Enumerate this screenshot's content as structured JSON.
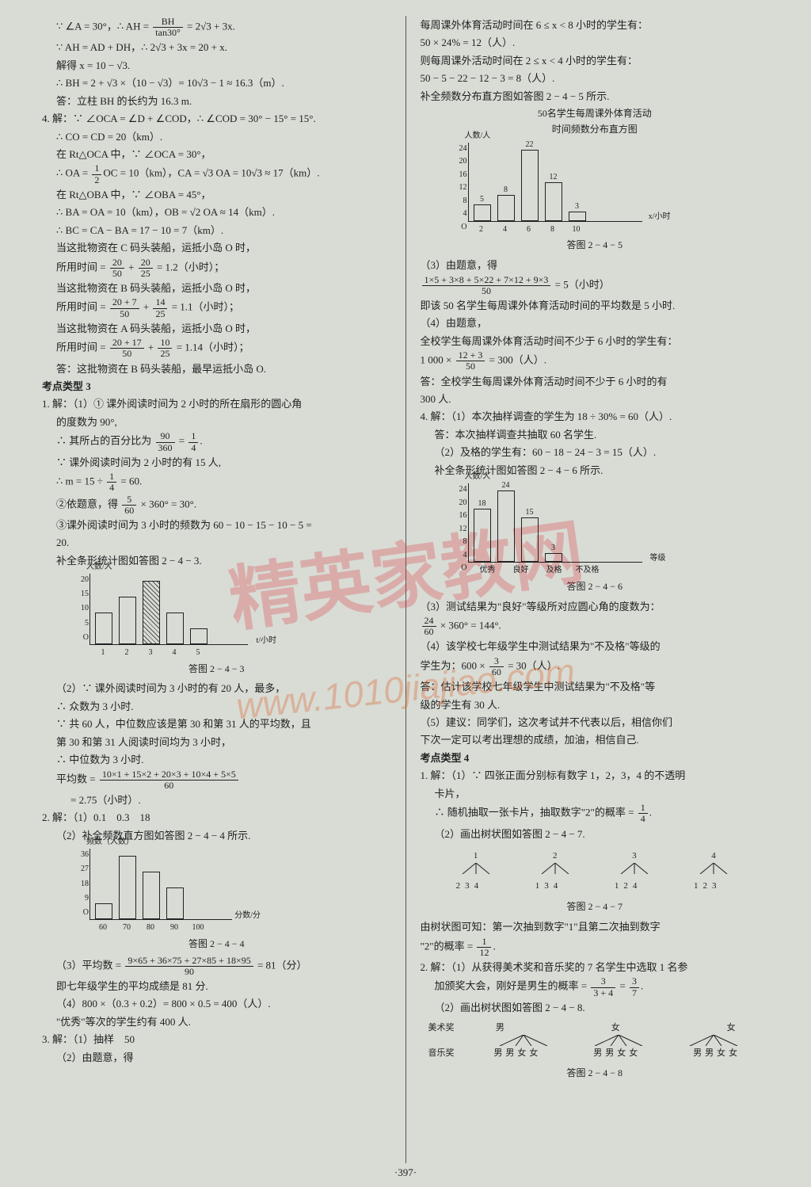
{
  "page_number": "·397·",
  "watermark_main": "精英家教网",
  "watermark_url": "www.1010jiajiao.com",
  "left": {
    "l1": "∵ ∠A = 30°，∴ AH = ",
    "l1b": " = 2√3 + 3x.",
    "frac1_num": "BH",
    "frac1_den": "tan30°",
    "l2": "∵ AH = AD + DH，∴ 2√3 + 3x = 20 + x.",
    "l3": "解得 x = 10 − √3.",
    "l4": "∴ BH = 2 + √3 ×（10 − √3）= 10√3 − 1 ≈ 16.3（m）.",
    "l5": "答：立柱 BH 的长约为 16.3 m.",
    "l6": "4. 解：∵ ∠OCA = ∠D + ∠COD，∴ ∠COD = 30° − 15° = 15°.",
    "l7": "∴ CO = CD = 20（km）.",
    "l8": "在 Rt△OCA 中，∵ ∠OCA = 30°，",
    "l9a": "∴ OA = ",
    "frac2_num": "1",
    "frac2_den": "2",
    "l9b": "OC = 10（km），CA = √3 OA = 10√3 ≈ 17（km）.",
    "l10": "在 Rt△OBA 中，∵ ∠OBA = 45°，",
    "l11": "∴ BA = OA = 10（km），OB = √2 OA ≈ 14（km）.",
    "l12": "∴ BC = CA − BA = 17 − 10 = 7（km）.",
    "l13": "当这批物资在 C 码头装船，运抵小岛 O 时，",
    "l14a": "所用时间 = ",
    "frac3a_num": "20",
    "frac3a_den": "50",
    "l14m": " + ",
    "frac3b_num": "20",
    "frac3b_den": "25",
    "l14b": " = 1.2（小时）；",
    "l15": "当这批物资在 B 码头装船，运抵小岛 O 时，",
    "l16a": "所用时间 = ",
    "frac4a_num": "20 + 7",
    "frac4a_den": "50",
    "l16m": " + ",
    "frac4b_num": "14",
    "frac4b_den": "25",
    "l16b": " = 1.1（小时）；",
    "l17": "当这批物资在 A 码头装船，运抵小岛 O 时，",
    "l18a": "所用时间 = ",
    "frac5a_num": "20 + 17",
    "frac5a_den": "50",
    "l18m": " + ",
    "frac5b_num": "10",
    "frac5b_den": "25",
    "l18b": " = 1.14（小时）；",
    "l19": "答：这批物资在 B 码头装船，最早运抵小岛 O.",
    "sec3": "考点类型 3",
    "l20": "1. 解：（1）① 课外阅读时间为 2 小时的所在扇形的圆心角",
    "l20b": "的度数为 90°,",
    "l21a": "∴ 其所占的百分比为 ",
    "frac6_num": "90",
    "frac6_den": "360",
    "l21m": " = ",
    "frac6b_num": "1",
    "frac6b_den": "4",
    "l21b": ".",
    "l22": "∵ 课外阅读时间为 2 小时的有 15 人,",
    "l23a": "∴ m = 15 ÷ ",
    "frac7_num": "1",
    "frac7_den": "4",
    "l23b": " = 60.",
    "l24a": "②依题意，得 ",
    "frac8_num": "5",
    "frac8_den": "60",
    "l24b": " × 360° = 30°.",
    "l25": "③课外阅读时间为 3 小时的频数为 60 − 10 − 15 − 10 − 5 =",
    "l25b": "20.",
    "l26": "补全条形统计图如答图 2 − 4 − 3.",
    "chart1_caption": "答图 2 − 4 − 3",
    "chart1_ylabel": "人数/人",
    "chart1_xlabel": "t/小时",
    "chart1": {
      "categories": [
        "1",
        "2",
        "3",
        "4",
        "5"
      ],
      "values": [
        10,
        15,
        20,
        10,
        5
      ],
      "ymax": 20,
      "yticks": [
        "20",
        "15",
        "10",
        "5",
        "O"
      ],
      "bar_color": "transparent",
      "hatched": [
        false,
        false,
        true,
        false,
        false
      ]
    },
    "l27": "（2）∵ 课外阅读时间为 3 小时的有 20 人，最多，",
    "l28": "∴ 众数为 3 小时.",
    "l29": "∵ 共 60 人，中位数应该是第 30 和第 31 人的平均数，且",
    "l30": "第 30 和第 31 人阅读时间均为 3 小时，",
    "l31": "∴ 中位数为 3 小时.",
    "l32a": "平均数 = ",
    "frac9_num": "10×1 + 15×2 + 20×3 + 10×4 + 5×5",
    "frac9_den": "60",
    "l33": "= 2.75（小时）.",
    "l34": "2. 解：（1）0.1　0.3　18",
    "l35": "（2）补全频数直方图如答图 2 − 4 − 4 所示.",
    "chart2_caption": "答图 2 − 4 − 4",
    "chart2_ylabel": "频数（人数）",
    "chart2_xlabel": "分数/分",
    "chart2": {
      "categories": [
        "60",
        "70",
        "80",
        "90",
        "100"
      ],
      "values": [
        9,
        36,
        27,
        18
      ],
      "yticks": [
        "36",
        "27",
        "18",
        "9",
        "O"
      ]
    },
    "l36a": "（3）平均数 = ",
    "frac10_num": "9×65 + 36×75 + 27×85 + 18×95",
    "frac10_den": "90",
    "l36b": " = 81（分）",
    "l37": "即七年级学生的平均成绩是 81 分.",
    "l38": "（4）800 ×（0.3 + 0.2）= 800 × 0.5 = 400（人）.",
    "l39": "\"优秀\"等次的学生约有 400 人.",
    "l40": "3. 解：（1）抽样　50",
    "l41": "（2）由题意，得"
  },
  "right": {
    "r1": "每周课外体育活动时间在 6 ≤ x < 8 小时的学生有：",
    "r2": "50 × 24% = 12（人）.",
    "r3": "则每周课外活动时间在 2 ≤ x < 4 小时的学生有：",
    "r4": "50 − 5 − 22 − 12 − 3 = 8（人）.",
    "r5": "补全频数分布直方图如答图 2 − 4 − 5 所示.",
    "r5b": "50名学生每周课外体育活动",
    "r5c": "时间频数分布直方图",
    "chart3_caption": "答图 2 − 4 − 5",
    "chart3_ylabel": "人数/人",
    "chart3_xlabel": "x/小时",
    "chart3": {
      "categories": [
        "2",
        "4",
        "6",
        "8",
        "10"
      ],
      "values": [
        5,
        8,
        22,
        12,
        3
      ],
      "labels_top": [
        "5",
        "8",
        "22",
        "12",
        "3"
      ],
      "yticks": [
        "24",
        "20",
        "16",
        "12",
        "8",
        "4",
        "O"
      ]
    },
    "r6": "（3）由题意，得",
    "r7_num": "1×5 + 3×8 + 5×22 + 7×12 + 9×3",
    "r7_den": "50",
    "r7b": " = 5（小时）",
    "r8": "即该 50 名学生每周课外体育活动时间的平均数是 5 小时.",
    "r9": "（4）由题意，",
    "r10": "全校学生每周课外体育活动时间不少于 6 小时的学生有：",
    "r11a": "1 000 × ",
    "r11_num": "12 + 3",
    "r11_den": "50",
    "r11b": " = 300（人）.",
    "r12": "答：全校学生每周课外体育活动时间不少于 6 小时的有",
    "r12b": "300 人.",
    "r13": "4. 解：（1）本次抽样调查的学生为 18 ÷ 30% = 60（人）.",
    "r14": "答：本次抽样调查共抽取 60 名学生.",
    "r15": "（2）及格的学生有：60 − 18 − 24 − 3 = 15（人）.",
    "r16": "补全条形统计图如答图 2 − 4 − 6 所示.",
    "chart4_caption": "答图 2 − 4 − 6",
    "chart4_ylabel": "人数/人",
    "chart4_xlabel": "等级",
    "chart4": {
      "categories": [
        "优秀",
        "良好",
        "及格",
        "不及格"
      ],
      "values": [
        18,
        24,
        15,
        3
      ],
      "labels_top": [
        "18",
        "24",
        "15",
        "3"
      ],
      "yticks": [
        "24",
        "20",
        "16",
        "12",
        "8",
        "4",
        "O"
      ]
    },
    "r17": "（3）测试结果为\"良好\"等级所对应圆心角的度数为：",
    "r18a_num": "24",
    "r18a_den": "60",
    "r18b": " × 360° = 144°.",
    "r19": "（4）该学校七年级学生中测试结果为\"不及格\"等级的",
    "r20a": "学生为：600 × ",
    "r20_num": "3",
    "r20_den": "60",
    "r20b": " = 30（人）.",
    "r21": "答：估计该学校七年级学生中测试结果为\"不及格\"等",
    "r21b": "级的学生有 30 人.",
    "r22": "（5）建议：同学们，这次考试并不代表以后，相信你们",
    "r23": "下次一定可以考出理想的成绩，加油，相信自己.",
    "sec4": "考点类型 4",
    "r24": "1. 解：（1）∵ 四张正面分别标有数字 1，2，3，4 的不透明",
    "r24b": "卡片，",
    "r25a": "∴ 随机抽取一张卡片，抽取数字\"2\"的概率 = ",
    "r25_num": "1",
    "r25_den": "4",
    "r25b": ".",
    "r26": "（2）画出树状图如答图 2 − 4 − 7.",
    "tree1_caption": "答图 2 − 4 − 7",
    "tree1": {
      "roots": [
        "1",
        "2",
        "3",
        "4"
      ],
      "branches": [
        [
          "2",
          "3",
          "4"
        ],
        [
          "1",
          "3",
          "4"
        ],
        [
          "1",
          "2",
          "4"
        ],
        [
          "1",
          "2",
          "3"
        ]
      ]
    },
    "r27": "由树状图可知：第一次抽到数字\"1\"且第二次抽到数字",
    "r28a": "\"2\"的概率 = ",
    "r28_num": "1",
    "r28_den": "12",
    "r28b": ".",
    "r29": "2. 解：（1）从获得美术奖和音乐奖的 7 名学生中选取 1 名参",
    "r30a": "加颁奖大会，刚好是男生的概率 = ",
    "r30_num": "3",
    "r30_den": "3 + 4",
    "r30m": " = ",
    "r30b_num": "3",
    "r30b_den": "7",
    "r30c": ".",
    "r31": "（2）画出树状图如答图 2 − 4 − 8.",
    "tree2_caption": "答图 2 − 4 − 8",
    "tree2": {
      "row1_label": "美术奖",
      "row1": [
        "男",
        "女",
        "女"
      ],
      "row2_label": "音乐奖",
      "row2_each": [
        "男",
        "男",
        "女",
        "女"
      ]
    }
  }
}
